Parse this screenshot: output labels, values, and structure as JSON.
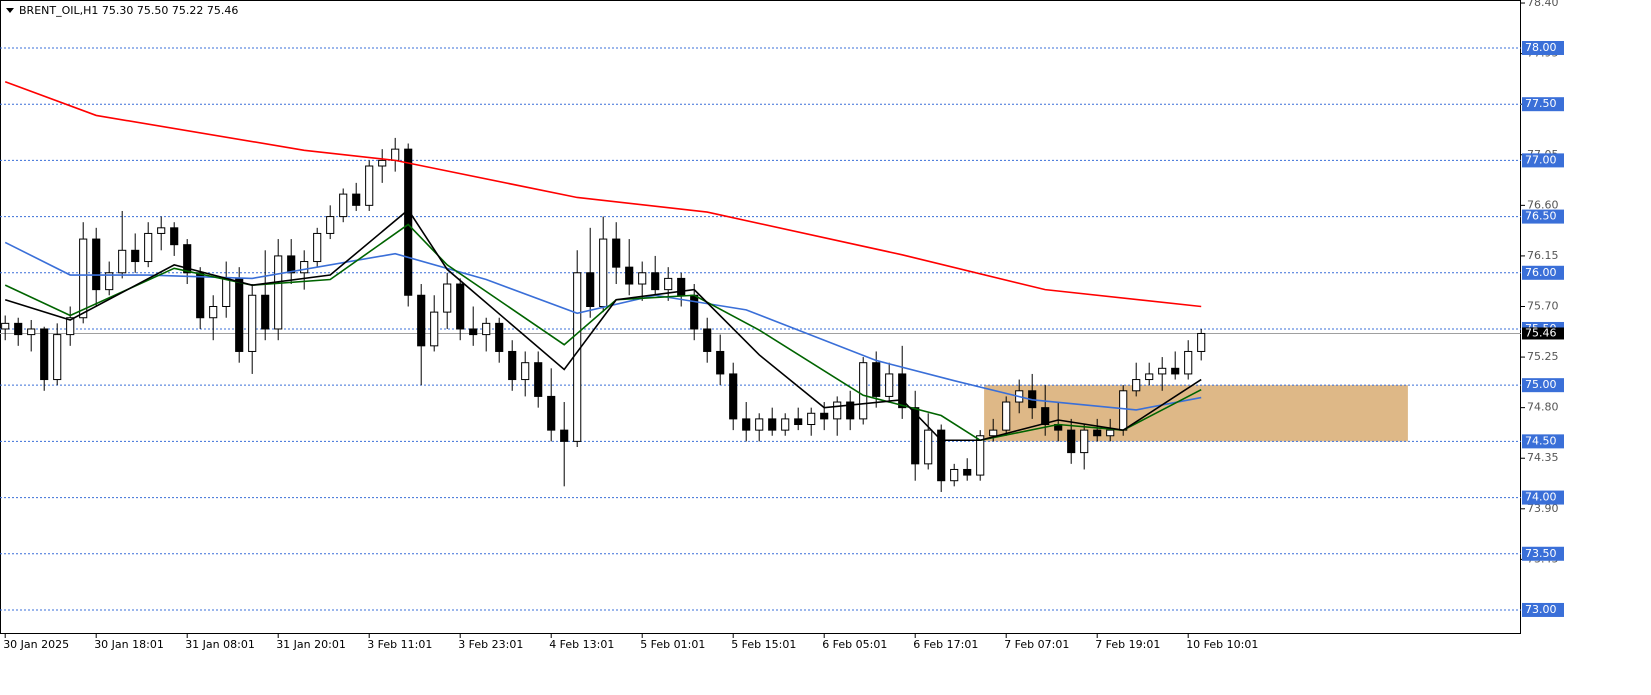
{
  "chart_data": {
    "type": "candlestick",
    "title": "BRENT_OIL,H1  75.30 75.50 75.22 75.46",
    "candles": [
      [
        75.5,
        75.62,
        75.4,
        75.55
      ],
      [
        75.55,
        75.6,
        75.35,
        75.45
      ],
      [
        75.45,
        75.58,
        75.3,
        75.5
      ],
      [
        75.5,
        75.52,
        74.95,
        75.05
      ],
      [
        75.05,
        75.55,
        75.0,
        75.45
      ],
      [
        75.45,
        75.7,
        75.35,
        75.6
      ],
      [
        75.6,
        76.45,
        75.55,
        76.3
      ],
      [
        76.3,
        76.4,
        75.7,
        75.85
      ],
      [
        75.85,
        76.1,
        75.8,
        76.0
      ],
      [
        76.0,
        76.55,
        75.95,
        76.2
      ],
      [
        76.2,
        76.35,
        76.0,
        76.1
      ],
      [
        76.1,
        76.45,
        76.05,
        76.35
      ],
      [
        76.35,
        76.5,
        76.2,
        76.4
      ],
      [
        76.4,
        76.45,
        76.15,
        76.25
      ],
      [
        76.25,
        76.3,
        75.9,
        76.0
      ],
      [
        76.0,
        76.05,
        75.5,
        75.6
      ],
      [
        75.6,
        75.8,
        75.4,
        75.7
      ],
      [
        75.7,
        76.1,
        75.6,
        75.95
      ],
      [
        75.95,
        76.05,
        75.2,
        75.3
      ],
      [
        75.3,
        75.9,
        75.1,
        75.8
      ],
      [
        75.8,
        76.2,
        75.4,
        75.5
      ],
      [
        75.5,
        76.3,
        75.4,
        76.15
      ],
      [
        76.15,
        76.3,
        75.9,
        76.0
      ],
      [
        76.0,
        76.2,
        75.85,
        76.1
      ],
      [
        76.1,
        76.4,
        76.05,
        76.35
      ],
      [
        76.35,
        76.6,
        76.3,
        76.5
      ],
      [
        76.5,
        76.75,
        76.45,
        76.7
      ],
      [
        76.7,
        76.8,
        76.55,
        76.6
      ],
      [
        76.6,
        77.0,
        76.55,
        76.95
      ],
      [
        76.95,
        77.1,
        76.8,
        77.0
      ],
      [
        77.0,
        77.2,
        76.9,
        77.1
      ],
      [
        77.1,
        77.15,
        75.7,
        75.8
      ],
      [
        75.8,
        75.9,
        75.0,
        75.35
      ],
      [
        75.35,
        75.8,
        75.3,
        75.65
      ],
      [
        75.65,
        76.0,
        75.5,
        75.9
      ],
      [
        75.9,
        75.95,
        75.4,
        75.5
      ],
      [
        75.5,
        75.7,
        75.35,
        75.45
      ],
      [
        75.45,
        75.6,
        75.3,
        75.55
      ],
      [
        75.55,
        75.6,
        75.2,
        75.3
      ],
      [
        75.3,
        75.4,
        74.95,
        75.05
      ],
      [
        75.05,
        75.3,
        74.9,
        75.2
      ],
      [
        75.2,
        75.3,
        74.8,
        74.9
      ],
      [
        74.9,
        75.15,
        74.5,
        74.6
      ],
      [
        74.6,
        74.85,
        74.1,
        74.5
      ],
      [
        74.5,
        76.2,
        74.45,
        76.0
      ],
      [
        76.0,
        76.4,
        75.6,
        75.7
      ],
      [
        75.7,
        76.5,
        75.65,
        76.3
      ],
      [
        76.3,
        76.45,
        75.9,
        76.05
      ],
      [
        76.05,
        76.3,
        75.8,
        75.9
      ],
      [
        75.9,
        76.1,
        75.75,
        76.0
      ],
      [
        76.0,
        76.15,
        75.8,
        75.85
      ],
      [
        75.85,
        76.05,
        75.75,
        75.95
      ],
      [
        75.95,
        76.0,
        75.7,
        75.8
      ],
      [
        75.8,
        75.9,
        75.4,
        75.5
      ],
      [
        75.5,
        75.6,
        75.2,
        75.3
      ],
      [
        75.3,
        75.45,
        75.0,
        75.1
      ],
      [
        75.1,
        75.2,
        74.6,
        74.7
      ],
      [
        74.7,
        74.85,
        74.5,
        74.6
      ],
      [
        74.6,
        74.75,
        74.5,
        74.7
      ],
      [
        74.7,
        74.8,
        74.55,
        74.6
      ],
      [
        74.6,
        74.75,
        74.55,
        74.7
      ],
      [
        74.7,
        74.8,
        74.6,
        74.65
      ],
      [
        74.65,
        74.8,
        74.55,
        74.75
      ],
      [
        74.75,
        74.85,
        74.6,
        74.7
      ],
      [
        74.7,
        74.9,
        74.55,
        74.85
      ],
      [
        74.85,
        74.95,
        74.6,
        74.7
      ],
      [
        74.7,
        75.25,
        74.65,
        75.2
      ],
      [
        75.2,
        75.3,
        74.8,
        74.9
      ],
      [
        74.9,
        75.2,
        74.85,
        75.1
      ],
      [
        75.1,
        75.35,
        74.7,
        74.8
      ],
      [
        74.8,
        74.95,
        74.15,
        74.3
      ],
      [
        74.3,
        74.75,
        74.25,
        74.6
      ],
      [
        74.6,
        74.65,
        74.05,
        74.15
      ],
      [
        74.15,
        74.3,
        74.1,
        74.25
      ],
      [
        74.25,
        74.35,
        74.15,
        74.2
      ],
      [
        74.2,
        74.6,
        74.15,
        74.55
      ],
      [
        74.55,
        74.7,
        74.5,
        74.6
      ],
      [
        74.6,
        74.9,
        74.55,
        74.85
      ],
      [
        74.85,
        75.05,
        74.75,
        74.95
      ],
      [
        74.95,
        75.1,
        74.7,
        74.8
      ],
      [
        74.8,
        75.0,
        74.55,
        74.65
      ],
      [
        74.65,
        74.85,
        74.5,
        74.6
      ],
      [
        74.6,
        74.7,
        74.3,
        74.4
      ],
      [
        74.4,
        74.65,
        74.25,
        74.6
      ],
      [
        74.6,
        74.7,
        74.5,
        74.55
      ],
      [
        74.55,
        74.7,
        74.5,
        74.6
      ],
      [
        74.6,
        75.0,
        74.55,
        74.95
      ],
      [
        74.95,
        75.2,
        74.9,
        75.05
      ],
      [
        75.05,
        75.2,
        75.0,
        75.1
      ],
      [
        75.1,
        75.25,
        74.95,
        75.15
      ],
      [
        75.15,
        75.3,
        75.05,
        75.1
      ],
      [
        75.1,
        75.4,
        75.05,
        75.3
      ],
      [
        75.3,
        75.5,
        75.22,
        75.46
      ]
    ],
    "up_color": "#ffffff",
    "down_color": "#000000",
    "lines": [
      {
        "color": "#ff0000",
        "x": [
          0,
          7,
          23,
          30,
          44,
          54,
          69,
          80,
          92
        ],
        "values": [
          77.7,
          77.4,
          77.09,
          77.0,
          76.67,
          76.54,
          76.16,
          75.85,
          75.7
        ]
      },
      {
        "color": "#3a6fd8",
        "x": [
          0,
          5,
          11,
          19,
          30,
          37,
          44,
          50,
          57,
          67,
          73,
          79,
          87,
          92
        ],
        "values": [
          76.27,
          75.98,
          75.98,
          75.95,
          76.17,
          75.94,
          75.64,
          75.8,
          75.67,
          75.22,
          75.04,
          74.87,
          74.78,
          74.89
        ]
      },
      {
        "color": "#006400",
        "x": [
          0,
          5,
          13,
          19,
          25,
          31,
          34,
          43,
          47,
          53,
          58,
          66,
          72,
          75,
          81,
          86,
          92
        ],
        "values": [
          75.89,
          75.62,
          76.04,
          75.89,
          75.94,
          76.43,
          76.07,
          75.36,
          75.76,
          75.8,
          75.49,
          74.91,
          74.73,
          74.51,
          74.65,
          74.6,
          74.96
        ]
      },
      {
        "color": "#000000",
        "x": [
          0,
          5,
          13,
          19,
          25,
          31,
          34,
          43,
          47,
          53,
          58,
          63,
          69,
          72,
          75,
          81,
          86,
          92
        ],
        "values": [
          75.76,
          75.58,
          76.07,
          75.89,
          75.98,
          76.56,
          76.03,
          75.14,
          75.76,
          75.85,
          75.27,
          74.8,
          74.87,
          74.51,
          74.51,
          74.69,
          74.6,
          75.05
        ]
      }
    ],
    "zone": {
      "x": [
        75.3,
        107.9
      ],
      "y": [
        74.5,
        75.0
      ],
      "color": "#deb887"
    },
    "levels": [
      {
        "value": 78,
        "label": "78.00"
      },
      {
        "value": 77.5,
        "label": "77.50"
      },
      {
        "value": 77,
        "label": "77.00"
      },
      {
        "value": 76.5,
        "label": "76.50"
      },
      {
        "value": 76,
        "label": "76.00"
      },
      {
        "value": 75.5,
        "label": "75.50"
      },
      {
        "value": 75,
        "label": "75.00"
      },
      {
        "value": 74.5,
        "label": "74.50"
      },
      {
        "value": 74,
        "label": "74.00"
      },
      {
        "value": 73.5,
        "label": "73.50"
      },
      {
        "value": 73,
        "label": "73.00"
      }
    ],
    "current_price": 75.46,
    "xlim": [
      -0.4,
      116.6
    ],
    "ylim": [
      72.795,
      78.427
    ],
    "yticks": [
      {
        "value": 78.4,
        "label": "78.40"
      },
      {
        "value": 77.95,
        "label": "77.95"
      },
      {
        "value": 77.5,
        "label": "77.50"
      },
      {
        "value": 77.05,
        "label": "77.05"
      },
      {
        "value": 76.6,
        "label": "76.60"
      },
      {
        "value": 76.15,
        "label": "76.15"
      },
      {
        "value": 75.7,
        "label": "75.70"
      },
      {
        "value": 75.25,
        "label": "75.25"
      },
      {
        "value": 74.8,
        "label": "74.80"
      },
      {
        "value": 74.35,
        "label": "74.35"
      },
      {
        "value": 73.9,
        "label": "73.90"
      },
      {
        "value": 73.45,
        "label": "73.45"
      }
    ],
    "xticks": [
      {
        "value": 0,
        "label": "30 Jan 2025"
      },
      {
        "value": 7,
        "label": "30 Jan 18:01"
      },
      {
        "value": 14,
        "label": "31 Jan 08:01"
      },
      {
        "value": 21,
        "label": "31 Jan 20:01"
      },
      {
        "value": 28,
        "label": "3 Feb 11:01"
      },
      {
        "value": 35,
        "label": "3 Feb 23:01"
      },
      {
        "value": 42,
        "label": "4 Feb 13:01"
      },
      {
        "value": 49,
        "label": "5 Feb 01:01"
      },
      {
        "value": 56,
        "label": "5 Feb 15:01"
      },
      {
        "value": 63,
        "label": "6 Feb 05:01"
      },
      {
        "value": 70,
        "label": "6 Feb 17:01"
      },
      {
        "value": 77,
        "label": "7 Feb 07:01"
      },
      {
        "value": 84,
        "label": "7 Feb 19:01"
      },
      {
        "value": 91,
        "label": "10 Feb 10:01"
      }
    ]
  }
}
